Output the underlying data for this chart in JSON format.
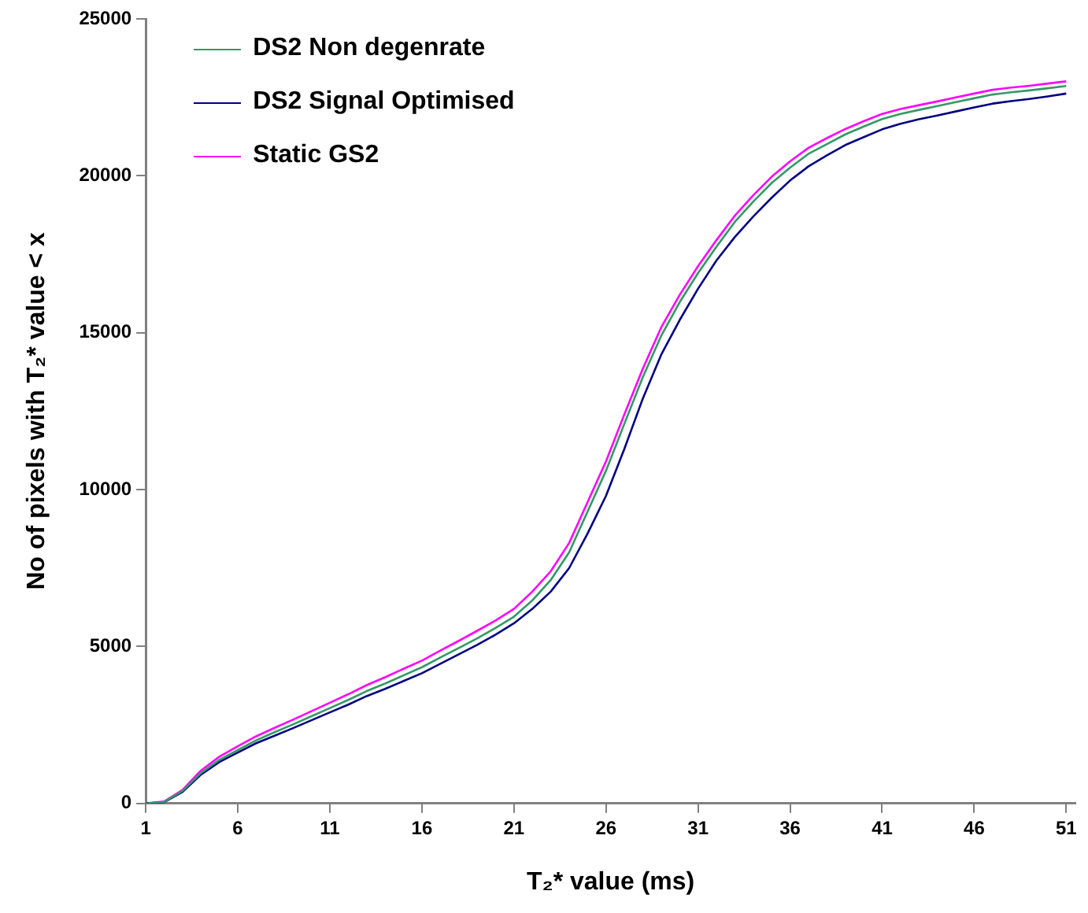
{
  "chart_data": {
    "type": "line",
    "xlabel": "T₂* value (ms)",
    "ylabel": "No of pixels with T₂* value < x",
    "x": [
      1,
      2,
      3,
      4,
      5,
      6,
      7,
      8,
      9,
      10,
      11,
      12,
      13,
      14,
      15,
      16,
      17,
      18,
      19,
      20,
      21,
      22,
      23,
      24,
      25,
      26,
      27,
      28,
      29,
      30,
      31,
      32,
      33,
      34,
      35,
      36,
      37,
      38,
      39,
      40,
      41,
      42,
      43,
      44,
      45,
      46,
      47,
      48,
      49,
      50,
      51
    ],
    "xlim": [
      1,
      51.5
    ],
    "xticks": [
      1,
      6,
      11,
      16,
      21,
      26,
      31,
      36,
      41,
      46,
      51
    ],
    "ylim": [
      0,
      25000
    ],
    "yticks": [
      0,
      5000,
      10000,
      15000,
      20000,
      25000
    ],
    "grid": false,
    "legend": "top left",
    "marker": "none",
    "line_style": "solid",
    "series": [
      {
        "name": "DS2 Non degenrate",
        "color": "#339966",
        "values": [
          0,
          50,
          400,
          970,
          1390,
          1700,
          2010,
          2270,
          2520,
          2780,
          3040,
          3300,
          3580,
          3820,
          4080,
          4340,
          4650,
          4950,
          5260,
          5590,
          5950,
          6470,
          7120,
          8000,
          9300,
          10600,
          12100,
          13580,
          14900,
          15970,
          16900,
          17740,
          18530,
          19180,
          19770,
          20260,
          20700,
          21010,
          21320,
          21570,
          21810,
          21970,
          22100,
          22220,
          22350,
          22470,
          22590,
          22660,
          22720,
          22790,
          22860
        ]
      },
      {
        "name": "DS2 Signal Optimised",
        "color": "#000080",
        "values": [
          0,
          40,
          370,
          920,
          1320,
          1620,
          1920,
          2160,
          2400,
          2650,
          2900,
          3150,
          3420,
          3650,
          3900,
          4150,
          4450,
          4750,
          5050,
          5380,
          5740,
          6200,
          6750,
          7500,
          8600,
          9800,
          11300,
          12900,
          14300,
          15400,
          16400,
          17300,
          18050,
          18700,
          19300,
          19850,
          20300,
          20650,
          20980,
          21230,
          21480,
          21660,
          21800,
          21920,
          22050,
          22180,
          22300,
          22380,
          22450,
          22530,
          22620
        ]
      },
      {
        "name": "Static GS2",
        "color": "#ff00ff",
        "values": [
          0,
          60,
          430,
          1050,
          1490,
          1820,
          2140,
          2410,
          2670,
          2940,
          3210,
          3480,
          3770,
          4020,
          4290,
          4550,
          4870,
          5180,
          5500,
          5830,
          6200,
          6750,
          7400,
          8300,
          9600,
          10900,
          12400,
          13850,
          15170,
          16200,
          17120,
          17950,
          18730,
          19380,
          19970,
          20460,
          20890,
          21200,
          21490,
          21740,
          21970,
          22130,
          22250,
          22370,
          22500,
          22620,
          22740,
          22810,
          22870,
          22940,
          23010
        ]
      }
    ]
  }
}
